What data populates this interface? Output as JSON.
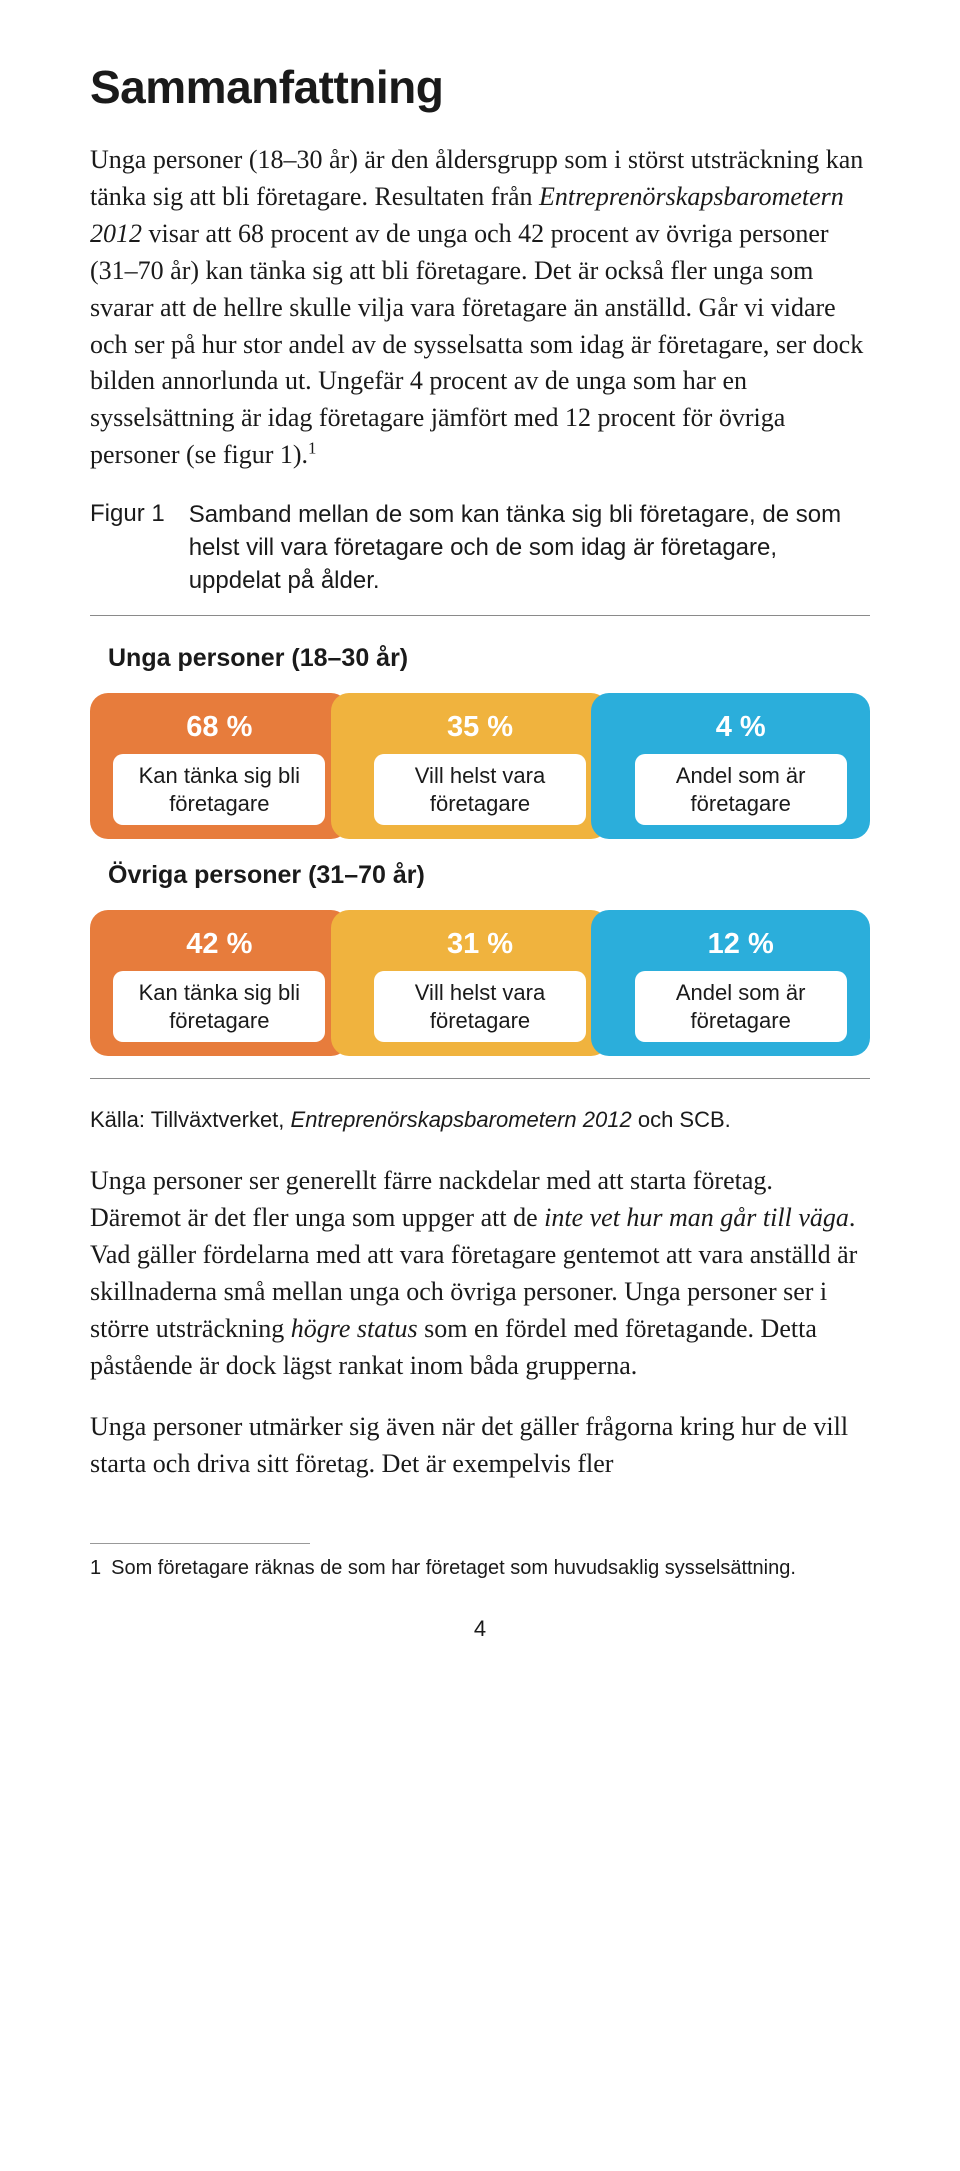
{
  "title": "Sammanfattning",
  "paragraphs": {
    "p1_plain_a": "Unga personer (18–30 år) är den åldersgrupp som i störst utsträckning kan tänka sig att bli företagare. Resultaten från ",
    "p1_italic_a": "Entreprenörskapsbarometern 2012",
    "p1_plain_b": " visar att 68 procent av de unga och 42 procent av övriga personer (31–70 år) kan tänka sig att bli företagare. Det är också fler unga som svarar att de hellre skulle vilja vara företagare än anställd. Går vi vidare och ser på hur stor andel av de sysselsatta som idag är företagare, ser dock bilden annorlunda ut. Ungefär 4 procent av de unga som har en sysselsättning är idag företagare jämfört med 12 procent för övriga personer (se figur 1).",
    "p1_sup": "1",
    "p2_a": "Unga personer ser generellt färre nackdelar med att starta företag. Däremot är det fler unga som uppger att de ",
    "p2_i1": "inte vet hur man går till väga",
    "p2_b": ". Vad gäller fördelarna med att vara företagare gentemot att vara anställd är skillnaderna små mellan unga och övriga personer. Unga personer ser i större utsträckning ",
    "p2_i2": "högre status",
    "p2_c": " som en fördel med företagande. Detta påstående är dock lägst rankat inom båda grupperna.",
    "p3": "Unga personer utmärker sig även när det gäller frågorna kring hur de vill starta och driva sitt företag. Det är exempelvis fler"
  },
  "figure": {
    "label": "Figur 1",
    "caption": "Samband mellan de som kan tänka sig bli företagare, de som helst vill vara företagare och de som idag är företagare, uppdelat på ålder."
  },
  "groups": [
    {
      "title": "Unga personer (18–30 år)",
      "items": [
        {
          "pct": "68 %",
          "label": "Kan tänka sig bli företagare",
          "color": "orange"
        },
        {
          "pct": "35 %",
          "label": "Vill helst vara företagare",
          "color": "yellow"
        },
        {
          "pct": "4 %",
          "label": "Andel som är företagare",
          "color": "blue"
        }
      ]
    },
    {
      "title": "Övriga personer (31–70 år)",
      "items": [
        {
          "pct": "42 %",
          "label": "Kan tänka sig bli företagare",
          "color": "orange"
        },
        {
          "pct": "31 %",
          "label": "Vill helst vara företagare",
          "color": "yellow"
        },
        {
          "pct": "12 %",
          "label": "Andel som är företagare",
          "color": "blue"
        }
      ]
    }
  ],
  "source": {
    "prefix": "Källa: Tillväxtverket, ",
    "italic": "Entreprenörskapsbarometern 2012",
    "suffix": " och SCB."
  },
  "footnote": {
    "num": "1",
    "text": "Som företagare räknas de som har företaget som huvudsaklig sysselsättning."
  },
  "page": "4",
  "colors": {
    "orange": "#e77c3c",
    "yellow": "#f0b33e",
    "blue": "#2baedb"
  }
}
